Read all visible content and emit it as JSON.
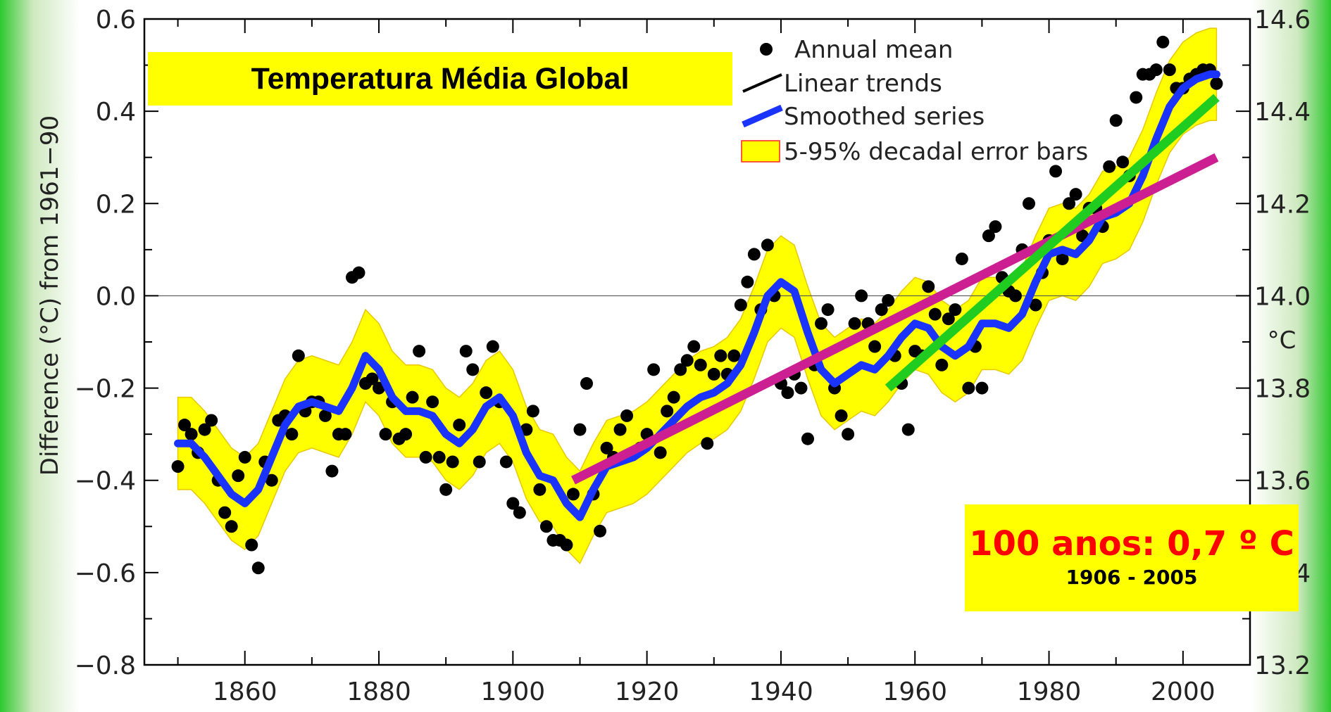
{
  "chart_data": {
    "type": "line",
    "title": "Temperatura Média Global",
    "ylabel": "Difference (°C) from 1961−90",
    "y2label": "°C",
    "xlim": [
      1845,
      2010
    ],
    "ylim": [
      -0.8,
      0.6
    ],
    "y2lim": [
      13.2,
      14.6
    ],
    "grid": false,
    "legend_position": "top-right",
    "x_ticks": [
      1860,
      1880,
      1900,
      1920,
      1940,
      1960,
      1980,
      2000
    ],
    "x_tick_labels": [
      "1860",
      "1880",
      "1900",
      "1920",
      "1940",
      "1960",
      "1980",
      "2000"
    ],
    "y_ticks": [
      0.6,
      0.4,
      0.2,
      0.0,
      -0.2,
      -0.4,
      -0.6,
      -0.8
    ],
    "y_tick_labels": [
      "0.6",
      "0.4",
      "0.2",
      "0.0",
      "−0.2",
      "−0.4",
      "−0.6",
      "−0.8"
    ],
    "y2_ticks": [
      14.6,
      14.4,
      14.2,
      14.0,
      13.8,
      13.6,
      13.4,
      13.2
    ],
    "y2_tick_labels": [
      "14.6",
      "14.4",
      "14.2",
      "14.0",
      "13.8",
      "13.6",
      "13.4",
      "13.2"
    ],
    "legend": [
      {
        "label": "Annual mean",
        "symbol": "dot",
        "color": "#000000"
      },
      {
        "label": "Linear trends",
        "symbol": "line",
        "color": "#000000"
      },
      {
        "label": "Smoothed series",
        "symbol": "line",
        "color": "#1a33ff"
      },
      {
        "label": "5-95% decadal error bars",
        "symbol": "box",
        "color": "#ffff00"
      }
    ],
    "annual_mean": [
      [
        1850,
        -0.37
      ],
      [
        1851,
        -0.28
      ],
      [
        1852,
        -0.3
      ],
      [
        1853,
        -0.34
      ],
      [
        1854,
        -0.29
      ],
      [
        1855,
        -0.27
      ],
      [
        1856,
        -0.4
      ],
      [
        1857,
        -0.47
      ],
      [
        1858,
        -0.5
      ],
      [
        1859,
        -0.39
      ],
      [
        1860,
        -0.35
      ],
      [
        1861,
        -0.54
      ],
      [
        1862,
        -0.59
      ],
      [
        1863,
        -0.36
      ],
      [
        1864,
        -0.4
      ],
      [
        1865,
        -0.27
      ],
      [
        1866,
        -0.26
      ],
      [
        1867,
        -0.3
      ],
      [
        1868,
        -0.13
      ],
      [
        1869,
        -0.25
      ],
      [
        1870,
        -0.23
      ],
      [
        1871,
        -0.23
      ],
      [
        1872,
        -0.26
      ],
      [
        1873,
        -0.38
      ],
      [
        1874,
        -0.3
      ],
      [
        1875,
        -0.3
      ],
      [
        1876,
        0.04
      ],
      [
        1877,
        0.05
      ],
      [
        1878,
        -0.19
      ],
      [
        1879,
        -0.18
      ],
      [
        1880,
        -0.2
      ],
      [
        1881,
        -0.3
      ],
      [
        1882,
        -0.23
      ],
      [
        1883,
        -0.31
      ],
      [
        1884,
        -0.3
      ],
      [
        1885,
        -0.22
      ],
      [
        1886,
        -0.12
      ],
      [
        1887,
        -0.35
      ],
      [
        1888,
        -0.23
      ],
      [
        1889,
        -0.35
      ],
      [
        1890,
        -0.42
      ],
      [
        1891,
        -0.36
      ],
      [
        1892,
        -0.28
      ],
      [
        1893,
        -0.12
      ],
      [
        1894,
        -0.16
      ],
      [
        1895,
        -0.36
      ],
      [
        1896,
        -0.21
      ],
      [
        1897,
        -0.11
      ],
      [
        1898,
        -0.23
      ],
      [
        1899,
        -0.36
      ],
      [
        1900,
        -0.45
      ],
      [
        1901,
        -0.47
      ],
      [
        1902,
        -0.29
      ],
      [
        1903,
        -0.25
      ],
      [
        1904,
        -0.42
      ],
      [
        1905,
        -0.5
      ],
      [
        1906,
        -0.53
      ],
      [
        1907,
        -0.53
      ],
      [
        1908,
        -0.54
      ],
      [
        1909,
        -0.43
      ],
      [
        1910,
        -0.29
      ],
      [
        1911,
        -0.19
      ],
      [
        1912,
        -0.43
      ],
      [
        1913,
        -0.51
      ],
      [
        1914,
        -0.33
      ],
      [
        1915,
        -0.35
      ],
      [
        1916,
        -0.29
      ],
      [
        1917,
        -0.26
      ],
      [
        1918,
        -0.34
      ],
      [
        1919,
        -0.33
      ],
      [
        1920,
        -0.3
      ],
      [
        1921,
        -0.16
      ],
      [
        1922,
        -0.34
      ],
      [
        1923,
        -0.25
      ],
      [
        1924,
        -0.22
      ],
      [
        1925,
        -0.16
      ],
      [
        1926,
        -0.14
      ],
      [
        1927,
        -0.11
      ],
      [
        1928,
        -0.15
      ],
      [
        1929,
        -0.32
      ],
      [
        1930,
        -0.17
      ],
      [
        1931,
        -0.13
      ],
      [
        1932,
        -0.17
      ],
      [
        1933,
        -0.13
      ],
      [
        1934,
        -0.02
      ],
      [
        1935,
        0.03
      ],
      [
        1936,
        0.09
      ],
      [
        1937,
        -0.03
      ],
      [
        1938,
        0.11
      ],
      [
        1939,
        0.0
      ],
      [
        1940,
        -0.19
      ],
      [
        1941,
        -0.21
      ],
      [
        1942,
        -0.17
      ],
      [
        1943,
        -0.2
      ],
      [
        1944,
        -0.31
      ],
      [
        1945,
        -0.15
      ],
      [
        1946,
        -0.06
      ],
      [
        1947,
        -0.03
      ],
      [
        1948,
        -0.2
      ],
      [
        1949,
        -0.26
      ],
      [
        1950,
        -0.3
      ],
      [
        1951,
        -0.06
      ],
      [
        1952,
        0.0
      ],
      [
        1953,
        -0.06
      ],
      [
        1954,
        -0.11
      ],
      [
        1955,
        -0.03
      ],
      [
        1956,
        -0.01
      ],
      [
        1957,
        -0.13
      ],
      [
        1958,
        -0.19
      ],
      [
        1959,
        -0.29
      ],
      [
        1960,
        -0.12
      ],
      [
        1961,
        -0.13
      ],
      [
        1962,
        0.02
      ],
      [
        1963,
        -0.04
      ],
      [
        1964,
        -0.15
      ],
      [
        1965,
        -0.05
      ],
      [
        1966,
        -0.03
      ],
      [
        1967,
        0.08
      ],
      [
        1968,
        -0.2
      ],
      [
        1969,
        -0.11
      ],
      [
        1970,
        -0.2
      ],
      [
        1971,
        0.13
      ],
      [
        1972,
        0.15
      ],
      [
        1973,
        0.04
      ],
      [
        1974,
        0.01
      ],
      [
        1975,
        0.0
      ],
      [
        1976,
        0.1
      ],
      [
        1977,
        0.2
      ],
      [
        1978,
        -0.02
      ],
      [
        1979,
        0.05
      ],
      [
        1980,
        0.12
      ],
      [
        1981,
        0.27
      ],
      [
        1982,
        0.08
      ],
      [
        1983,
        0.2
      ],
      [
        1984,
        0.22
      ],
      [
        1985,
        0.13
      ],
      [
        1986,
        0.19
      ],
      [
        1987,
        0.19
      ],
      [
        1988,
        0.15
      ],
      [
        1989,
        0.28
      ],
      [
        1990,
        0.38
      ],
      [
        1991,
        0.29
      ],
      [
        1992,
        0.26
      ],
      [
        1993,
        0.43
      ],
      [
        1994,
        0.48
      ],
      [
        1995,
        0.48
      ],
      [
        1996,
        0.49
      ],
      [
        1997,
        0.55
      ],
      [
        1998,
        0.49
      ],
      [
        1999,
        0.45
      ],
      [
        2000,
        0.45
      ],
      [
        2001,
        0.47
      ],
      [
        2002,
        0.48
      ],
      [
        2003,
        0.49
      ],
      [
        2004,
        0.49
      ],
      [
        2005,
        0.46
      ]
    ],
    "smoothed_series": [
      [
        1850,
        -0.32
      ],
      [
        1852,
        -0.32
      ],
      [
        1854,
        -0.35
      ],
      [
        1856,
        -0.39
      ],
      [
        1858,
        -0.43
      ],
      [
        1860,
        -0.45
      ],
      [
        1862,
        -0.42
      ],
      [
        1864,
        -0.35
      ],
      [
        1866,
        -0.28
      ],
      [
        1868,
        -0.24
      ],
      [
        1870,
        -0.23
      ],
      [
        1872,
        -0.24
      ],
      [
        1874,
        -0.25
      ],
      [
        1876,
        -0.2
      ],
      [
        1878,
        -0.13
      ],
      [
        1880,
        -0.16
      ],
      [
        1882,
        -0.22
      ],
      [
        1884,
        -0.25
      ],
      [
        1886,
        -0.25
      ],
      [
        1888,
        -0.26
      ],
      [
        1890,
        -0.3
      ],
      [
        1892,
        -0.32
      ],
      [
        1894,
        -0.29
      ],
      [
        1896,
        -0.24
      ],
      [
        1898,
        -0.22
      ],
      [
        1900,
        -0.26
      ],
      [
        1902,
        -0.34
      ],
      [
        1904,
        -0.39
      ],
      [
        1906,
        -0.4
      ],
      [
        1908,
        -0.45
      ],
      [
        1910,
        -0.48
      ],
      [
        1912,
        -0.42
      ],
      [
        1914,
        -0.37
      ],
      [
        1916,
        -0.36
      ],
      [
        1918,
        -0.35
      ],
      [
        1920,
        -0.33
      ],
      [
        1922,
        -0.3
      ],
      [
        1924,
        -0.27
      ],
      [
        1926,
        -0.24
      ],
      [
        1928,
        -0.22
      ],
      [
        1930,
        -0.21
      ],
      [
        1932,
        -0.19
      ],
      [
        1934,
        -0.15
      ],
      [
        1936,
        -0.08
      ],
      [
        1938,
        0.0
      ],
      [
        1940,
        0.03
      ],
      [
        1942,
        0.01
      ],
      [
        1944,
        -0.08
      ],
      [
        1946,
        -0.16
      ],
      [
        1948,
        -0.19
      ],
      [
        1950,
        -0.17
      ],
      [
        1952,
        -0.15
      ],
      [
        1954,
        -0.16
      ],
      [
        1956,
        -0.13
      ],
      [
        1958,
        -0.09
      ],
      [
        1960,
        -0.06
      ],
      [
        1962,
        -0.07
      ],
      [
        1964,
        -0.11
      ],
      [
        1966,
        -0.13
      ],
      [
        1968,
        -0.11
      ],
      [
        1970,
        -0.06
      ],
      [
        1972,
        -0.06
      ],
      [
        1974,
        -0.07
      ],
      [
        1976,
        -0.04
      ],
      [
        1978,
        0.03
      ],
      [
        1980,
        0.09
      ],
      [
        1982,
        0.1
      ],
      [
        1984,
        0.09
      ],
      [
        1986,
        0.12
      ],
      [
        1988,
        0.17
      ],
      [
        1990,
        0.18
      ],
      [
        1992,
        0.2
      ],
      [
        1994,
        0.26
      ],
      [
        1996,
        0.34
      ],
      [
        1998,
        0.41
      ],
      [
        2000,
        0.45
      ],
      [
        2002,
        0.47
      ],
      [
        2004,
        0.48
      ],
      [
        2005,
        0.48
      ]
    ],
    "error_band_halfwidth": 0.1,
    "linear_trends": [
      {
        "color": "#cc1f91",
        "start": [
          1909,
          -0.4
        ],
        "end": [
          2005,
          0.3
        ]
      },
      {
        "color": "#1fcc1f",
        "start": [
          1956,
          -0.2
        ],
        "end": [
          2005,
          0.43
        ]
      }
    ],
    "annotation": {
      "main": "100 anos: 0,7 º C",
      "sub": "1906 - 2005"
    }
  }
}
